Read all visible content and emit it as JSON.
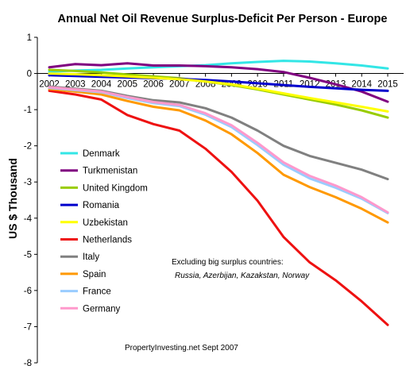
{
  "chart_data": {
    "type": "line",
    "title": "Annual Net Oil Revenue Surplus-Deficit Per Person - Europe",
    "xlabel": "",
    "ylabel": "US $ Thousand",
    "x": [
      2002,
      2003,
      2004,
      2005,
      2006,
      2007,
      2008,
      2009,
      2010,
      2011,
      2012,
      2013,
      2014,
      2015
    ],
    "ylim": [
      -8,
      1
    ],
    "yticks": [
      1,
      0,
      -1,
      -2,
      -3,
      -4,
      -5,
      -6,
      -7,
      -8
    ],
    "grid": false,
    "legend_position": "left",
    "series": [
      {
        "name": "Denmark",
        "color": "#33e6e6",
        "values": [
          0.05,
          0.08,
          0.1,
          0.14,
          0.17,
          0.2,
          0.23,
          0.28,
          0.32,
          0.35,
          0.33,
          0.28,
          0.22,
          0.14
        ]
      },
      {
        "name": "Turkmenistan",
        "color": "#800080",
        "values": [
          0.17,
          0.26,
          0.23,
          0.28,
          0.22,
          0.22,
          0.2,
          0.17,
          0.12,
          0.04,
          -0.12,
          -0.3,
          -0.5,
          -0.78
        ]
      },
      {
        "name": "United Kingdom",
        "color": "#99cc00",
        "values": [
          0.1,
          0.07,
          0.03,
          -0.03,
          -0.08,
          -0.13,
          -0.22,
          -0.32,
          -0.44,
          -0.58,
          -0.72,
          -0.86,
          -1.02,
          -1.22
        ]
      },
      {
        "name": "Romania",
        "color": "#0000cc",
        "values": [
          -0.05,
          -0.07,
          -0.09,
          -0.11,
          -0.13,
          -0.15,
          -0.18,
          -0.22,
          -0.27,
          -0.32,
          -0.37,
          -0.41,
          -0.45,
          -0.48
        ]
      },
      {
        "name": "Uzbekistan",
        "color": "#ffff00",
        "values": [
          0.0,
          -0.02,
          -0.05,
          -0.08,
          -0.12,
          -0.16,
          -0.22,
          -0.3,
          -0.42,
          -0.55,
          -0.68,
          -0.8,
          -0.92,
          -1.05
        ]
      },
      {
        "name": "Netherlands",
        "color": "#ee1111",
        "values": [
          -0.48,
          -0.58,
          -0.72,
          -1.15,
          -1.4,
          -1.58,
          -2.08,
          -2.72,
          -3.52,
          -4.52,
          -5.22,
          -5.72,
          -6.3,
          -6.95
        ]
      },
      {
        "name": "Italy",
        "color": "#808080",
        "values": [
          -0.36,
          -0.42,
          -0.48,
          -0.62,
          -0.74,
          -0.8,
          -0.96,
          -1.22,
          -1.58,
          -2.0,
          -2.28,
          -2.47,
          -2.66,
          -2.92
        ]
      },
      {
        "name": "Spain",
        "color": "#ff9900",
        "values": [
          -0.43,
          -0.5,
          -0.58,
          -0.76,
          -0.92,
          -1.02,
          -1.3,
          -1.68,
          -2.2,
          -2.8,
          -3.14,
          -3.42,
          -3.74,
          -4.12
        ]
      },
      {
        "name": "France",
        "color": "#99ccff",
        "values": [
          -0.4,
          -0.46,
          -0.52,
          -0.68,
          -0.82,
          -0.9,
          -1.14,
          -1.48,
          -1.98,
          -2.52,
          -2.9,
          -3.16,
          -3.46,
          -3.86
        ]
      },
      {
        "name": "Germany",
        "color": "#ff99cc",
        "values": [
          -0.38,
          -0.44,
          -0.5,
          -0.65,
          -0.79,
          -0.87,
          -1.1,
          -1.43,
          -1.92,
          -2.46,
          -2.83,
          -3.1,
          -3.42,
          -3.84
        ]
      }
    ],
    "annotations": {
      "note_line1": "Excluding big surplus countries:",
      "note_line2": "Russia, Azerbijan, Kazakstan, Norway",
      "credit": "PropertyInvesting.net    Sept 2007"
    }
  }
}
